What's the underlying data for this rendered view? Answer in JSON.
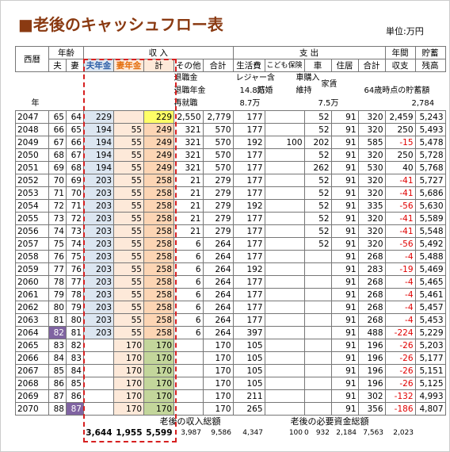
{
  "header": {
    "title": "■老後のキャッシュフロー表",
    "unit": "単位:万円"
  },
  "table": {
    "headers": {
      "year": "西暦",
      "age": "年齢",
      "income": "収 入",
      "expense": "支 出",
      "annual": "年間",
      "savings": "貯蓄",
      "columns": [
        "夫",
        "妻",
        "夫年金",
        "妻年金",
        "計",
        "その他",
        "合計",
        "生活費",
        "こども保険",
        "車",
        "住居",
        "合計",
        "収支",
        "残高"
      ]
    },
    "notes": [
      "退職金",
      "退職年金",
      "再就職",
      "年",
      "レジャー含",
      "14.8万",
      "8.7万",
      "結婚",
      "車購入",
      "維持",
      "7.5万",
      "家賃",
      "64歳時点の貯蓄額",
      "2,784"
    ],
    "rows": [
      [
        "2047",
        "65",
        "64",
        "229",
        null,
        "229",
        "2,550",
        "2,779",
        "177",
        null,
        "52",
        "91",
        "320",
        "2,459",
        "5,243"
      ],
      [
        "2048",
        "66",
        "65",
        "194",
        "55",
        "249",
        "321",
        "570",
        "177",
        null,
        "52",
        "91",
        "320",
        "250",
        "5,493"
      ],
      [
        "2049",
        "67",
        "66",
        "194",
        "55",
        "249",
        "321",
        "570",
        "192",
        "100",
        "202",
        "91",
        "585",
        "-15",
        "5,478"
      ],
      [
        "2050",
        "68",
        "67",
        "194",
        "55",
        "249",
        "321",
        "570",
        "177",
        null,
        "52",
        "91",
        "320",
        "250",
        "5,728"
      ],
      [
        "2051",
        "69",
        "68",
        "194",
        "55",
        "249",
        "321",
        "570",
        "177",
        null,
        "262",
        "91",
        "530",
        "40",
        "5,768"
      ],
      [
        "2052",
        "70",
        "69",
        "203",
        "55",
        "258",
        "21",
        "279",
        "177",
        null,
        "52",
        "91",
        "320",
        "-41",
        "5,727"
      ],
      [
        "2053",
        "71",
        "70",
        "203",
        "55",
        "258",
        "21",
        "279",
        "177",
        null,
        "52",
        "91",
        "320",
        "-41",
        "5,686"
      ],
      [
        "2054",
        "72",
        "71",
        "203",
        "55",
        "258",
        "21",
        "279",
        "192",
        null,
        "52",
        "91",
        "335",
        "-56",
        "5,630"
      ],
      [
        "2055",
        "73",
        "72",
        "203",
        "55",
        "258",
        "21",
        "279",
        "177",
        null,
        "52",
        "91",
        "320",
        "-41",
        "5,589"
      ],
      [
        "2056",
        "74",
        "73",
        "203",
        "55",
        "258",
        "21",
        "279",
        "177",
        null,
        "52",
        "91",
        "320",
        "-41",
        "5,548"
      ],
      [
        "2057",
        "75",
        "74",
        "203",
        "55",
        "258",
        "6",
        "264",
        "177",
        null,
        "52",
        "91",
        "320",
        "-56",
        "5,492"
      ],
      [
        "2058",
        "76",
        "75",
        "203",
        "55",
        "258",
        "6",
        "264",
        "177",
        null,
        null,
        "91",
        "268",
        "-4",
        "5,488"
      ],
      [
        "2059",
        "77",
        "76",
        "203",
        "55",
        "258",
        "6",
        "264",
        "192",
        null,
        null,
        "91",
        "283",
        "-19",
        "5,469"
      ],
      [
        "2060",
        "78",
        "77",
        "203",
        "55",
        "258",
        "6",
        "264",
        "177",
        null,
        null,
        "91",
        "268",
        "-4",
        "5,465"
      ],
      [
        "2061",
        "79",
        "78",
        "203",
        "55",
        "258",
        "6",
        "264",
        "177",
        null,
        null,
        "91",
        "268",
        "-4",
        "5,461"
      ],
      [
        "2062",
        "80",
        "79",
        "203",
        "55",
        "258",
        "6",
        "264",
        "177",
        null,
        null,
        "91",
        "268",
        "-4",
        "5,457"
      ],
      [
        "2063",
        "81",
        "80",
        "203",
        "55",
        "258",
        "6",
        "264",
        "177",
        null,
        null,
        "91",
        "268",
        "-4",
        "5,453"
      ],
      [
        "2064",
        "82",
        "81",
        "203",
        "55",
        "258",
        "6",
        "264",
        "397",
        null,
        null,
        "91",
        "488",
        "-224",
        "5,229"
      ],
      [
        "2065",
        "83",
        "82",
        null,
        "170",
        "170",
        null,
        "170",
        "105",
        null,
        null,
        "91",
        "196",
        "-26",
        "5,203"
      ],
      [
        "2066",
        "84",
        "83",
        null,
        "170",
        "170",
        null,
        "170",
        "105",
        null,
        null,
        "91",
        "196",
        "-26",
        "5,177"
      ],
      [
        "2067",
        "85",
        "84",
        null,
        "170",
        "170",
        null,
        "170",
        "105",
        null,
        null,
        "91",
        "196",
        "-26",
        "5,151"
      ],
      [
        "2068",
        "86",
        "85",
        null,
        "170",
        "170",
        null,
        "170",
        "105",
        null,
        null,
        "91",
        "196",
        "-26",
        "5,125"
      ],
      [
        "2069",
        "87",
        "86",
        null,
        "170",
        "170",
        null,
        "170",
        "211",
        null,
        null,
        "91",
        "302",
        "-132",
        "4,993"
      ],
      [
        "2070",
        "88",
        "87",
        null,
        "170",
        "170",
        null,
        "170",
        "265",
        null,
        null,
        "91",
        "356",
        "-186",
        "4,807"
      ]
    ],
    "footer": {
      "labels": [
        "老後の収入総額",
        "老後の必要資金総額"
      ],
      "totals": [
        null,
        null,
        null,
        "3,644",
        "1,955",
        "5,599",
        "3,987",
        "9,586",
        "4,347",
        "100",
        "932",
        "2,184",
        "7,563",
        "2,023",
        null
      ],
      "extra": "0"
    }
  }
}
